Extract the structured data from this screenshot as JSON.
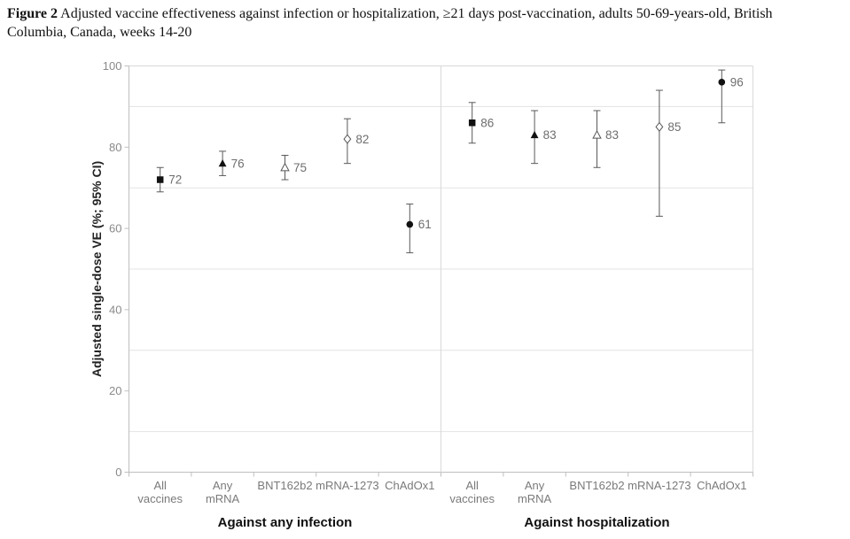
{
  "caption": {
    "bold": "Figure 2",
    "line1_rest": "Adjusted vaccine effectiveness against infection or hospitalization, ≥21 days post-vaccination, adults 50-69-years-old, British",
    "line2": "Columbia, Canada, weeks 14-20"
  },
  "chart_data": {
    "type": "scatter",
    "title": "Figure 2 Adjusted vaccine effectiveness against infection or hospitalization, ≥21 days post-vaccination, adults 50-69-years-old, British Columbia, Canada, weeks 14-20",
    "ylabel": "Adjusted single-dose VE (%; 95% CI)",
    "xlabel": "",
    "ylim": [
      0,
      100
    ],
    "y_ticks": [
      0,
      20,
      40,
      60,
      80,
      100
    ],
    "gridlines_at": [
      10,
      30,
      50,
      70,
      90
    ],
    "grid": "horizontal-minor",
    "legend": "none",
    "panels": [
      {
        "label": "Against any infection",
        "categories": [
          [
            "All",
            "vaccines"
          ],
          [
            "Any",
            "mRNA"
          ],
          [
            "BNT162b2"
          ],
          [
            "mRNA-1273"
          ],
          [
            "ChAdOx1"
          ]
        ],
        "points": [
          {
            "category": "All vaccines",
            "value": 72,
            "ci": [
              69,
              75
            ],
            "marker": "filled-square"
          },
          {
            "category": "Any mRNA",
            "value": 76,
            "ci": [
              73,
              79
            ],
            "marker": "filled-triangle"
          },
          {
            "category": "BNT162b2",
            "value": 75,
            "ci": [
              72,
              78
            ],
            "marker": "open-triangle"
          },
          {
            "category": "mRNA-1273",
            "value": 82,
            "ci": [
              76,
              87
            ],
            "marker": "open-diamond"
          },
          {
            "category": "ChAdOx1",
            "value": 61,
            "ci": [
              54,
              66
            ],
            "marker": "filled-circle"
          }
        ]
      },
      {
        "label": "Against hospitalization",
        "categories": [
          [
            "All",
            "vaccines"
          ],
          [
            "Any",
            "mRNA"
          ],
          [
            "BNT162b2"
          ],
          [
            "mRNA-1273"
          ],
          [
            "ChAdOx1"
          ]
        ],
        "points": [
          {
            "category": "All vaccines",
            "value": 86,
            "ci": [
              81,
              91
            ],
            "marker": "filled-square"
          },
          {
            "category": "Any mRNA",
            "value": 83,
            "ci": [
              76,
              89
            ],
            "marker": "filled-triangle"
          },
          {
            "category": "BNT162b2",
            "value": 83,
            "ci": [
              75,
              89
            ],
            "marker": "open-triangle"
          },
          {
            "category": "mRNA-1273",
            "value": 85,
            "ci": [
              63,
              94
            ],
            "marker": "open-diamond"
          },
          {
            "category": "ChAdOx1",
            "value": 96,
            "ci": [
              86,
              99
            ],
            "marker": "filled-circle"
          }
        ]
      }
    ],
    "colors": {
      "marker_fill": "#111111",
      "open_marker_stroke": "#555555",
      "error_bar": "#595959",
      "gridline": "#e3e3e3",
      "border": "#d9d9d9",
      "axis": "#bfbfbf",
      "tick_label": "#8a8a8a",
      "value_label": "#6e6e6e",
      "category_label": "#7a7a7a",
      "panel_title": "#111111",
      "y_axis_title": "#222222"
    }
  }
}
